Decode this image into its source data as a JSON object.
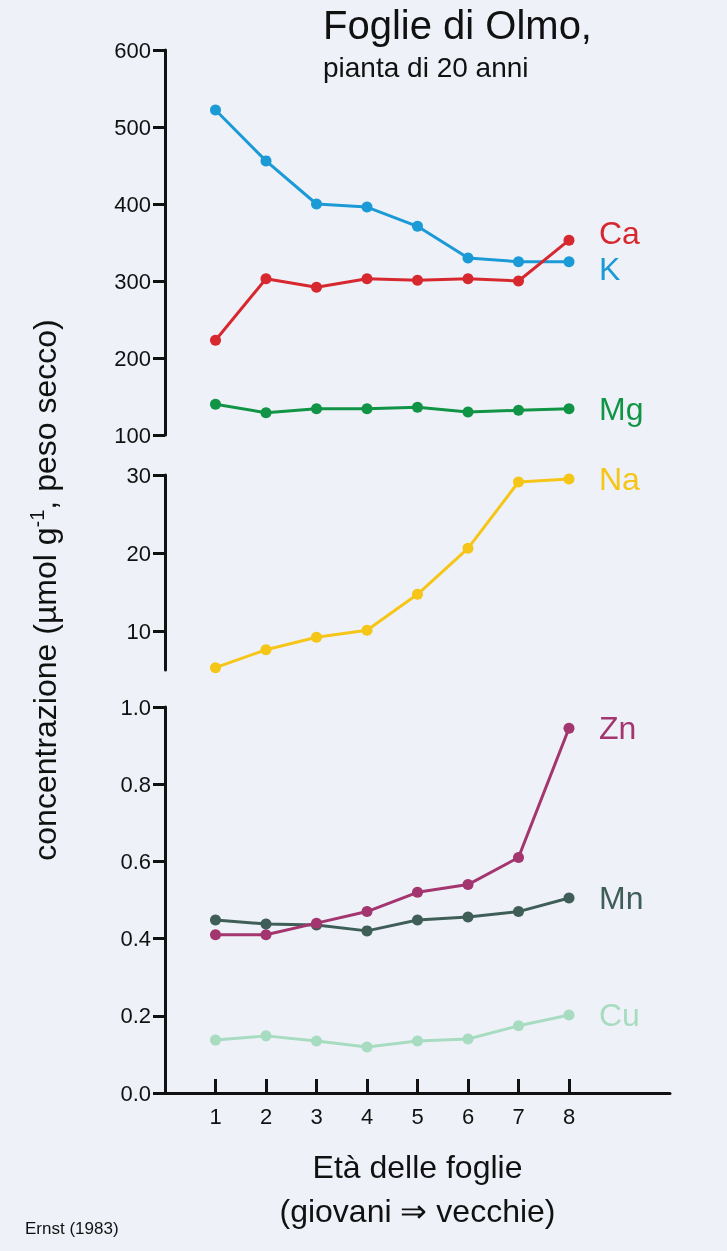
{
  "chart_data": [
    {
      "type": "line",
      "title": "Foglie di Olmo,",
      "subtitle": "pianta di 20 anni",
      "x": [
        1,
        2,
        3,
        4,
        5,
        6,
        7,
        8
      ],
      "ylim": [
        100,
        600
      ],
      "yticks": [
        100,
        200,
        300,
        400,
        500,
        600
      ],
      "tick_labels": "y",
      "grid": false,
      "legend": false,
      "marker": "circle",
      "line_style": "solid",
      "series": [
        {
          "name": "Ca",
          "color": "#d7282f",
          "values": [
            223,
            303,
            292,
            303,
            301,
            303,
            300,
            353
          ]
        },
        {
          "name": "K",
          "color": "#1b9ad6",
          "values": [
            522,
            456,
            400,
            396,
            371,
            330,
            325,
            325
          ]
        },
        {
          "name": "Mg",
          "color": "#129446",
          "values": [
            140,
            129,
            134,
            134,
            136,
            130,
            132,
            134
          ]
        }
      ]
    },
    {
      "type": "line",
      "ylabel": "concentrazione (µmol g$^{-1}$, peso secco)",
      "x": [
        1,
        2,
        3,
        4,
        5,
        6,
        7,
        8
      ],
      "ylim": [
        5,
        30
      ],
      "yticks": [
        10,
        20,
        30
      ],
      "tick_labels": "y",
      "grid": false,
      "legend": false,
      "marker": "circle",
      "line_style": "solid",
      "series": [
        {
          "name": "Na",
          "color": "#f5c518",
          "values": [
            5.3,
            7.6,
            9.2,
            10.1,
            14.7,
            20.6,
            29.1,
            29.5
          ]
        }
      ]
    },
    {
      "type": "line",
      "xlabel": "Età delle foglie\n(giovani ⇒ vecchie)",
      "annotations": [
        "Ernst (1983)"
      ],
      "x": [
        1,
        2,
        3,
        4,
        5,
        6,
        7,
        8
      ],
      "xlim": [
        0,
        10
      ],
      "xticks": [
        1,
        2,
        3,
        4,
        5,
        6,
        7,
        8
      ],
      "ylim": [
        0,
        1
      ],
      "yticks": [
        {
          "value": 0,
          "label": "0.0"
        },
        0.2,
        0.4,
        0.6,
        0.8,
        {
          "value": 1,
          "label": "1.0"
        }
      ],
      "grid": false,
      "legend": false,
      "marker": "circle",
      "line_style": "solid",
      "series": [
        {
          "name": "Zn",
          "color": "#a3356f",
          "values": [
            0.41,
            0.41,
            0.44,
            0.47,
            0.52,
            0.54,
            0.61,
            0.945
          ]
        },
        {
          "name": "Mn",
          "color": "#3f5e58",
          "values": [
            0.448,
            0.438,
            0.435,
            0.42,
            0.448,
            0.456,
            0.47,
            0.505
          ]
        },
        {
          "name": "Cu",
          "color": "#a8dcc0",
          "values": [
            0.137,
            0.148,
            0.135,
            0.119,
            0.135,
            0.14,
            0.174,
            0.202
          ]
        }
      ]
    }
  ]
}
